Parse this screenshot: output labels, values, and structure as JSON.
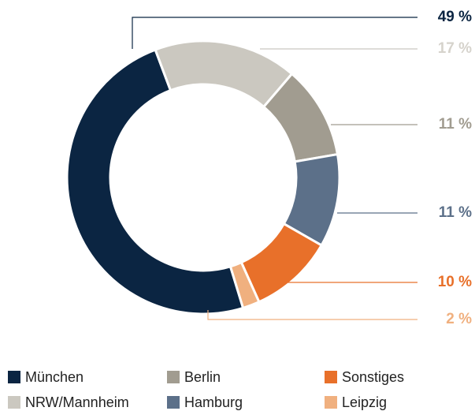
{
  "chart_data": {
    "type": "donut",
    "categories": [
      "München",
      "NRW/Mannheim",
      "Berlin",
      "Hamburg",
      "Sonstiges",
      "Leipzig"
    ],
    "values": [
      49,
      17,
      11,
      11,
      10,
      2
    ],
    "value_labels": [
      "49 %",
      "17 %",
      "11 %",
      "11 %",
      "10 %",
      "2 %"
    ],
    "colors": [
      "#0b2542",
      "#cbc8c0",
      "#a19c90",
      "#5c7089",
      "#e8702a",
      "#f0b07f"
    ],
    "legend": "bottom"
  }
}
